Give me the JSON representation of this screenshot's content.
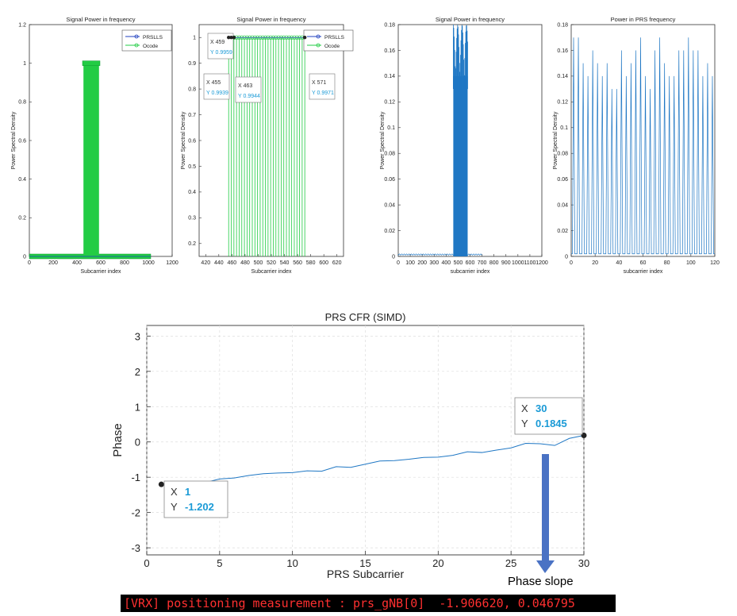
{
  "colors": {
    "prs": "#1f3fbf",
    "ocode": "#22cc44",
    "blue": "#1f77c4",
    "tip_value": "#1a9ad6",
    "terminal_text": "#ff3030",
    "arrow": "#4a72c4"
  },
  "chart_data": [
    {
      "type": "line",
      "title": "Signal Power in frequency",
      "xlabel": "Subcarrier index",
      "ylabel": "Power Spectral Density",
      "xlim": [
        0,
        1200
      ],
      "ylim": [
        0,
        1.2
      ],
      "xticks": [
        "0",
        "200",
        "400",
        "600",
        "800",
        "1000",
        "1200"
      ],
      "yticks": [
        "0",
        "0.2",
        "0.4",
        "0.6",
        "0.8",
        "1",
        "1.2"
      ],
      "legend": [
        "PRSLLS",
        "Ocode"
      ],
      "series": [
        {
          "name": "PRSLLS",
          "x": [
            0,
            1020
          ],
          "y": [
            0,
            0
          ]
        },
        {
          "name": "Ocode",
          "band_x": [
            460,
            580
          ],
          "band_y": 1.0,
          "baseline": 0,
          "x_range": [
            0,
            1020
          ]
        }
      ]
    },
    {
      "type": "line",
      "title": "Signal Power in frequency",
      "xlabel": "Subcarrier index",
      "ylabel": "Power Spectral Density",
      "xlim": [
        410,
        630
      ],
      "ylim": [
        0.15,
        1.05
      ],
      "xticks": [
        "420",
        "440",
        "460",
        "480",
        "500",
        "520",
        "540",
        "560",
        "580",
        "600",
        "620"
      ],
      "yticks": [
        "0.2",
        "0.3",
        "0.4",
        "0.5",
        "0.6",
        "0.7",
        "0.8",
        "0.9",
        "1"
      ],
      "legend": [
        "PRSLLS",
        "Ocode"
      ],
      "stems_x": [
        455,
        459,
        463,
        467,
        471,
        475,
        479,
        483,
        487,
        491,
        495,
        499,
        503,
        507,
        511,
        515,
        519,
        523,
        527,
        531,
        535,
        539,
        543,
        547,
        551,
        555,
        559,
        563,
        567,
        571
      ],
      "stems_y": 1.0,
      "datatips": [
        {
          "x": "X 459",
          "y": "Y 0.9959"
        },
        {
          "x": "X 455",
          "y": "Y 0.9939"
        },
        {
          "x": "X 463",
          "y": "Y 0.9944"
        },
        {
          "x": "X 571",
          "y": "Y 0.9971"
        }
      ]
    },
    {
      "type": "line",
      "title": "Signal Power in frequency",
      "xlabel": "subcarrier index",
      "ylabel": "Power Spectral Density",
      "xlim": [
        0,
        1200
      ],
      "ylim": [
        0,
        0.18
      ],
      "xticks": [
        "0",
        "100",
        "200",
        "300",
        "400",
        "500",
        "600",
        "700",
        "800",
        "900",
        "1000",
        "1100",
        "1200"
      ],
      "yticks": [
        "0",
        "0.02",
        "0.04",
        "0.06",
        "0.08",
        "0.1",
        "0.12",
        "0.14",
        "0.16",
        "0.18"
      ],
      "band_x": [
        460,
        580
      ],
      "band_peak": 0.18
    },
    {
      "type": "line",
      "title": "Power in PRS frequency",
      "xlabel": "subcarrier index",
      "ylabel": "Power Spectral Density",
      "xlim": [
        0,
        120
      ],
      "ylim": [
        0,
        0.18
      ],
      "xticks": [
        "0",
        "20",
        "40",
        "60",
        "80",
        "100",
        "120"
      ],
      "yticks": [
        "0",
        "0.02",
        "0.04",
        "0.06",
        "0.08",
        "0.1",
        "0.12",
        "0.14",
        "0.16",
        "0.18"
      ],
      "peaks": [
        0.17,
        0.17,
        0.15,
        0.14,
        0.16,
        0.15,
        0.14,
        0.15,
        0.13,
        0.13,
        0.16,
        0.14,
        0.15,
        0.16,
        0.17,
        0.14,
        0.13,
        0.16,
        0.17,
        0.15,
        0.14,
        0.14,
        0.16,
        0.16,
        0.17,
        0.16,
        0.16,
        0.14,
        0.15,
        0.14
      ]
    },
    {
      "type": "line",
      "title": "PRS CFR (SIMD)",
      "xlabel": "PRS Subcarrier",
      "ylabel": "Phase",
      "xlim": [
        0,
        30
      ],
      "ylim": [
        -3.2,
        3.3
      ],
      "xticks": [
        "0",
        "5",
        "10",
        "15",
        "20",
        "25",
        "30"
      ],
      "yticks": [
        "-3",
        "-2",
        "-1",
        "0",
        "1",
        "2",
        "3"
      ],
      "x": [
        1,
        2,
        3,
        4,
        5,
        6,
        7,
        8,
        9,
        10,
        11,
        12,
        13,
        14,
        15,
        16,
        17,
        18,
        19,
        20,
        21,
        22,
        23,
        24,
        25,
        26,
        27,
        28,
        29,
        30
      ],
      "y": [
        -1.202,
        -1.21,
        -1.2,
        -1.15,
        -1.05,
        -1.02,
        -0.95,
        -0.9,
        -0.88,
        -0.87,
        -0.82,
        -0.83,
        -0.7,
        -0.72,
        -0.63,
        -0.54,
        -0.53,
        -0.49,
        -0.44,
        -0.43,
        -0.38,
        -0.28,
        -0.3,
        -0.23,
        -0.17,
        -0.04,
        -0.05,
        -0.1,
        0.1,
        0.1845
      ],
      "datatips": [
        {
          "x_label": "X",
          "x_value": "1",
          "y_label": "Y",
          "y_value": "-1.202"
        },
        {
          "x_label": "X",
          "x_value": "30",
          "y_label": "Y",
          "y_value": "0.1845"
        }
      ]
    }
  ],
  "annotation": {
    "phase_slope": "Phase slope"
  },
  "terminal": {
    "text": "[VRX] positioning measurement : prs_gNB[0]  -1.906620, 0.046795"
  }
}
